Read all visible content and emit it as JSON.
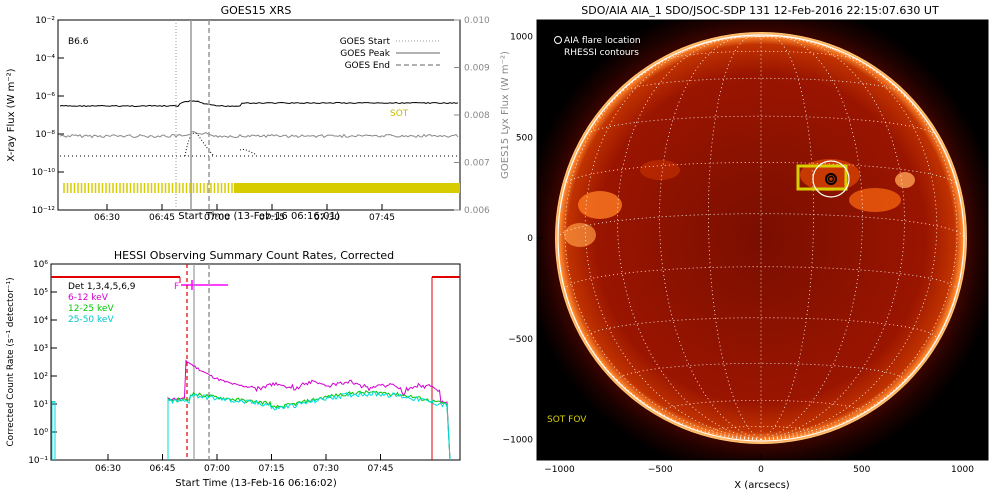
{
  "colors": {
    "goes_long": "#000000",
    "goes_short": "#888888",
    "sot_coverage": "#d6cc00",
    "hessi_6_12": "#d200d2",
    "hessi_12_25": "#00c800",
    "hessi_25_50": "#00dcdc",
    "hessi_markers": "#e00000",
    "flare_marker": "#ff00ff",
    "sun_disk": "#b01a00",
    "grid": "#ffffff",
    "sot_fov": "#d8cf00"
  },
  "goes_panel": {
    "title": "GOES15 XRS",
    "ylabel": "X-ray Flux (W m⁻²)",
    "ylabel2": "GOES15 Lyx Flux (W m⁻²)",
    "xlabel": "Start Time (13-Feb-16 06:16:01)",
    "class_label": "B6.6",
    "sot_label": "SOT",
    "legend": {
      "start": "GOES Start",
      "peak": "GOES Peak",
      "end": "GOES End"
    },
    "y_ticks": [
      "10⁻²",
      "10⁻⁴",
      "10⁻⁶",
      "10⁻⁸",
      "10⁻¹⁰",
      "10⁻¹²"
    ],
    "y2_ticks": [
      "0.010",
      "0.009",
      "0.008",
      "0.007",
      "0.006"
    ],
    "x_ticks": [
      "06:30",
      "06:45",
      "07:00",
      "07:15",
      "07:30",
      "07:45"
    ]
  },
  "hessi_panel": {
    "title": "HESSI Observing Summary Count Rates, Corrected",
    "ylabel": "Corrected Count Rate (s⁻¹ detector⁻¹)",
    "xlabel": "Start Time (13-Feb-16 06:16:02)",
    "det_label": "Det 1,3,4,5,6,9",
    "flag_label": "F",
    "legend": [
      "6-12 keV",
      "12-25 keV",
      "25-50 keV"
    ],
    "y_ticks": [
      "10⁶",
      "10⁵",
      "10⁴",
      "10³",
      "10²",
      "10¹",
      "10⁰",
      "10⁻¹"
    ],
    "x_ticks": [
      "06:30",
      "06:45",
      "07:00",
      "07:15",
      "07:30",
      "07:45"
    ]
  },
  "sun_panel": {
    "title": "SDO/AIA AIA_1 SDO/JSOC-SDP 131 12-Feb-2016 22:15:07.630 UT",
    "legend_aia": "AIA flare location",
    "legend_rhessi": "RHESSI contours",
    "sot_fov_label": "SOT FOV",
    "xlabel": "X (arcsecs)",
    "x_ticks": [
      "−1000",
      "−500",
      "0",
      "500",
      "1000"
    ],
    "y_ticks": [
      "1000",
      "500",
      "0",
      "−500",
      "−1000"
    ]
  },
  "chart_data": [
    {
      "type": "line",
      "title": "GOES15 XRS",
      "xlabel": "Start Time (13-Feb-16 06:16:01)",
      "ylabel": "X-ray Flux (W m⁻²)",
      "ylabel2": "GOES15 Lyx Flux (W m⁻²)",
      "y_scale": "log",
      "ylim": [
        1e-12,
        0.01
      ],
      "y2lim": [
        0.006,
        0.01
      ],
      "x_ticks": [
        "06:30",
        "06:45",
        "07:00",
        "07:15",
        "07:30",
        "07:45"
      ],
      "annotations": [
        "B6.6",
        "SOT"
      ],
      "series": [
        {
          "name": "GOES Start",
          "style": "dotted",
          "x_minutes": 39
        },
        {
          "name": "GOES Peak",
          "style": "solid",
          "x_minutes": 37.5
        },
        {
          "name": "GOES End",
          "style": "dashed",
          "x_minutes": 45
        }
      ]
    },
    {
      "type": "line",
      "title": "HESSI Observing Summary Count Rates, Corrected",
      "xlabel": "Start Time (13-Feb-16 06:16:02)",
      "ylabel": "Corrected Count Rate (s⁻¹ detector⁻¹)",
      "y_scale": "log",
      "ylim": [
        0.1,
        1000000.0
      ],
      "x_ticks": [
        "06:30",
        "06:45",
        "07:00",
        "07:15",
        "07:30",
        "07:45"
      ],
      "series": [
        {
          "name": "6-12 keV"
        },
        {
          "name": "12-25 keV"
        },
        {
          "name": "25-50 keV"
        }
      ]
    },
    {
      "type": "other",
      "title": "SDO/AIA AIA_1 SDO/JSOC-SDP 131 12-Feb-2016 22:15:07.630 UT",
      "xlabel": "X (arcsecs)",
      "xlim": [
        -1100,
        1100
      ],
      "ylim": [
        -1100,
        1100
      ],
      "flare_location_arcsec": [
        345,
        290
      ],
      "annotations": [
        "AIA flare location",
        "RHESSI contours",
        "SOT FOV"
      ]
    }
  ]
}
